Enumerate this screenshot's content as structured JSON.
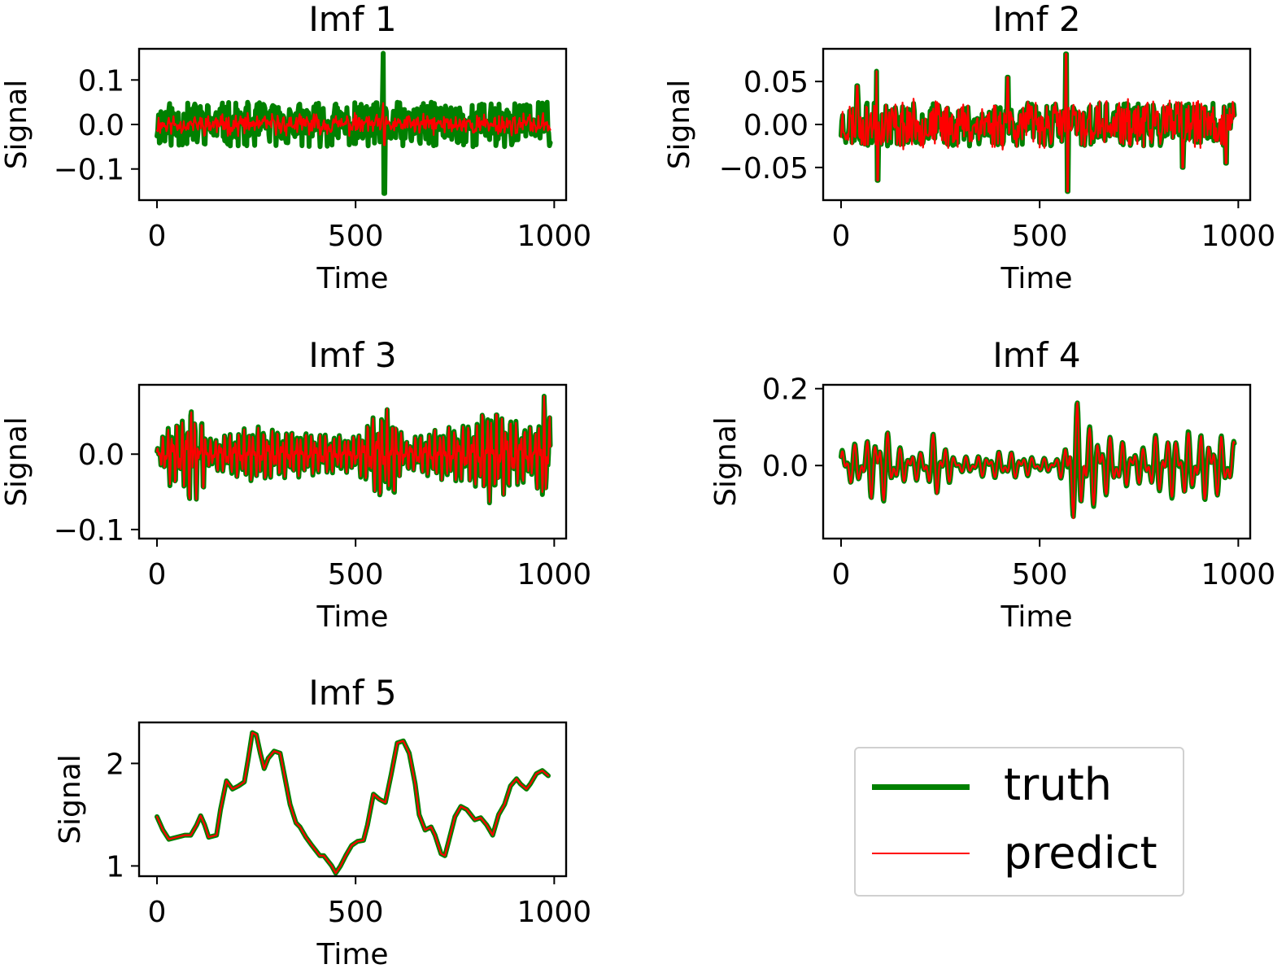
{
  "colors": {
    "truth": "#008000",
    "predict": "#ff0000",
    "axis": "#000000",
    "background": "#ffffff"
  },
  "legend": {
    "entries": [
      {
        "key": "truth",
        "label": "truth"
      },
      {
        "key": "predict",
        "label": "predict"
      }
    ]
  },
  "chart_data": [
    {
      "type": "line",
      "title": "Imf 1",
      "xlabel": "Time",
      "ylabel": "Signal",
      "xlim": [
        -45,
        1030
      ],
      "ylim": [
        -0.17,
        0.17
      ],
      "xticks": [
        0,
        500,
        1000
      ],
      "xtick_labels": [
        "0",
        "500",
        "1000"
      ],
      "yticks": [
        -0.1,
        0.0,
        0.1
      ],
      "ytick_labels": [
        "−0.1",
        "0.0",
        "0.1"
      ],
      "gen": {
        "kind": "noise",
        "seed": 11,
        "n": 500,
        "t_amp": 0.05,
        "noise": 0.25,
        "p_ratio": 0.3,
        "spikes": [
          {
            "x": 570,
            "v": 0.16
          },
          {
            "x": 572,
            "v": -0.155
          }
        ]
      },
      "series": [
        {
          "name": "truth",
          "x_range": [
            0,
            990
          ],
          "n_points": 500
        },
        {
          "name": "predict",
          "x_range": [
            0,
            990
          ],
          "n_points": 500
        }
      ]
    },
    {
      "type": "line",
      "title": "Imf 2",
      "xlabel": "Time",
      "ylabel": "Signal",
      "xlim": [
        -45,
        1030
      ],
      "ylim": [
        -0.088,
        0.088
      ],
      "xticks": [
        0,
        500,
        1000
      ],
      "xtick_labels": [
        "0",
        "500",
        "1000"
      ],
      "yticks": [
        -0.05,
        0.0,
        0.05
      ],
      "ytick_labels": [
        "−0.05",
        "0.00",
        "0.05"
      ],
      "gen": {
        "kind": "noise",
        "seed": 23,
        "n": 500,
        "t_amp": 0.025,
        "noise": 0.25,
        "p_ratio": 1.0,
        "spikes": [
          {
            "x": 90,
            "v": 0.062
          },
          {
            "x": 92,
            "v": -0.065
          },
          {
            "x": 40,
            "v": 0.045
          },
          {
            "x": 420,
            "v": 0.055
          },
          {
            "x": 566,
            "v": 0.082
          },
          {
            "x": 570,
            "v": -0.078
          },
          {
            "x": 860,
            "v": -0.05
          },
          {
            "x": 970,
            "v": -0.045
          }
        ]
      },
      "series": [
        {
          "name": "truth",
          "x_range": [
            0,
            990
          ],
          "n_points": 500
        },
        {
          "name": "predict",
          "x_range": [
            0,
            990
          ],
          "n_points": 500
        }
      ]
    },
    {
      "type": "line",
      "title": "Imf 3",
      "xlabel": "Time",
      "ylabel": "Signal",
      "xlim": [
        -45,
        1030
      ],
      "ylim": [
        -0.112,
        0.092
      ],
      "xticks": [
        0,
        500,
        1000
      ],
      "xtick_labels": [
        "0",
        "500",
        "1000"
      ],
      "yticks": [
        -0.1,
        0.0
      ],
      "ytick_labels": [
        "−0.1",
        "0.0"
      ],
      "gen": {
        "kind": "osc",
        "seed": 37,
        "period": 12,
        "n": 700,
        "anchors": [
          [
            0,
            0.01
          ],
          [
            30,
            0.045
          ],
          [
            70,
            0.05
          ],
          [
            90,
            0.085
          ],
          [
            96,
            -0.105
          ],
          [
            110,
            0.08
          ],
          [
            125,
            0.02
          ],
          [
            240,
            0.04
          ],
          [
            300,
            0.035
          ],
          [
            400,
            0.03
          ],
          [
            500,
            0.025
          ],
          [
            560,
            0.065
          ],
          [
            600,
            0.06
          ],
          [
            620,
            0.02
          ],
          [
            700,
            0.035
          ],
          [
            800,
            0.045
          ],
          [
            830,
            0.07
          ],
          [
            900,
            0.05
          ],
          [
            950,
            0.035
          ],
          [
            975,
            0.085
          ],
          [
            990,
            0.06
          ]
        ]
      },
      "series": [
        {
          "name": "truth",
          "x_range": [
            0,
            990
          ],
          "n_points": 700
        },
        {
          "name": "predict",
          "x_range": [
            0,
            990
          ],
          "n_points": 700
        }
      ]
    },
    {
      "type": "line",
      "title": "Imf 4",
      "xlabel": "Time",
      "ylabel": "Signal",
      "xlim": [
        -45,
        1030
      ],
      "ylim": [
        -0.19,
        0.21
      ],
      "xticks": [
        0,
        500,
        1000
      ],
      "xtick_labels": [
        "0",
        "500",
        "1000"
      ],
      "yticks": [
        0.0,
        0.2
      ],
      "ytick_labels": [
        "0.0",
        "0.2"
      ],
      "gen": {
        "kind": "osc",
        "seed": 53,
        "period": 28,
        "n": 700,
        "anchors": [
          [
            0,
            0.06
          ],
          [
            50,
            0.06
          ],
          [
            100,
            0.12
          ],
          [
            150,
            0.05
          ],
          [
            200,
            0.04
          ],
          [
            240,
            0.1
          ],
          [
            290,
            0.02
          ],
          [
            350,
            0.03
          ],
          [
            400,
            0.04
          ],
          [
            450,
            0.035
          ],
          [
            500,
            0.02
          ],
          [
            540,
            0.02
          ],
          [
            562,
            0.045
          ],
          [
            575,
            0.19
          ],
          [
            600,
            0.17
          ],
          [
            630,
            0.12
          ],
          [
            680,
            0.08
          ],
          [
            750,
            0.05
          ],
          [
            800,
            0.09
          ],
          [
            850,
            0.09
          ],
          [
            900,
            0.1
          ],
          [
            950,
            0.09
          ],
          [
            990,
            0.07
          ]
        ]
      },
      "series": [
        {
          "name": "truth",
          "x_range": [
            0,
            990
          ],
          "n_points": 700
        },
        {
          "name": "predict",
          "x_range": [
            0,
            990
          ],
          "n_points": 700
        }
      ]
    },
    {
      "type": "line",
      "title": "Imf 5",
      "xlabel": "Time",
      "ylabel": "Signal",
      "xlim": [
        -45,
        1030
      ],
      "ylim": [
        0.9,
        2.4
      ],
      "xticks": [
        0,
        500,
        1000
      ],
      "xtick_labels": [
        "0",
        "500",
        "1000"
      ],
      "yticks": [
        1,
        2
      ],
      "ytick_labels": [
        "1",
        "2"
      ],
      "series": [
        {
          "name": "truth",
          "x": [
            0,
            15,
            30,
            50,
            70,
            85,
            100,
            110,
            120,
            130,
            150,
            160,
            175,
            190,
            205,
            220,
            230,
            240,
            250,
            260,
            270,
            280,
            295,
            310,
            320,
            335,
            350,
            360,
            375,
            390,
            400,
            410,
            420,
            440,
            450,
            462,
            475,
            490,
            505,
            520,
            530,
            545,
            560,
            575,
            590,
            605,
            620,
            635,
            650,
            660,
            675,
            690,
            700,
            715,
            725,
            735,
            750,
            765,
            780,
            790,
            800,
            815,
            830,
            845,
            860,
            875,
            890,
            905,
            915,
            930,
            940,
            955,
            970,
            985
          ],
          "y": [
            1.48,
            1.35,
            1.26,
            1.28,
            1.3,
            1.3,
            1.4,
            1.49,
            1.4,
            1.28,
            1.3,
            1.55,
            1.83,
            1.75,
            1.78,
            1.82,
            2.05,
            2.3,
            2.28,
            2.1,
            1.95,
            2.05,
            2.12,
            2.1,
            1.9,
            1.6,
            1.42,
            1.38,
            1.28,
            1.2,
            1.15,
            1.1,
            1.1,
            1.0,
            0.93,
            1.0,
            1.1,
            1.2,
            1.24,
            1.25,
            1.4,
            1.7,
            1.65,
            1.62,
            1.9,
            2.2,
            2.22,
            2.1,
            1.8,
            1.5,
            1.35,
            1.38,
            1.3,
            1.12,
            1.1,
            1.25,
            1.48,
            1.58,
            1.55,
            1.5,
            1.45,
            1.47,
            1.4,
            1.3,
            1.5,
            1.6,
            1.78,
            1.85,
            1.8,
            1.75,
            1.8,
            1.9,
            1.93,
            1.88
          ]
        },
        {
          "name": "predict",
          "same_as": "truth"
        }
      ]
    }
  ]
}
